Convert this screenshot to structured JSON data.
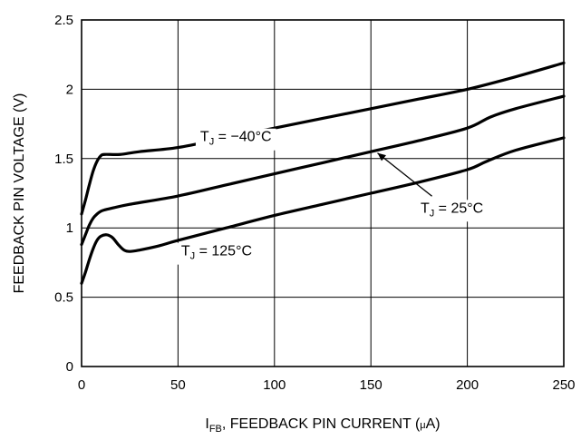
{
  "chart_data": {
    "type": "line",
    "xlabel": {
      "main": "I",
      "sub": "FB",
      "rest": ", FEEDBACK PIN CURRENT (",
      "mu": "μ",
      "unit": "A)"
    },
    "ylabel": "FEEDBACK PIN VOLTAGE (V)",
    "xlim": [
      0,
      250
    ],
    "ylim": [
      0,
      2.5
    ],
    "x_ticks": [
      {
        "value": 0,
        "label": "0"
      },
      {
        "value": 50,
        "label": "50"
      },
      {
        "value": 100,
        "label": "100"
      },
      {
        "value": 150,
        "label": "150"
      },
      {
        "value": 200,
        "label": "200"
      },
      {
        "value": 250,
        "label": "250"
      }
    ],
    "y_ticks": [
      {
        "value": 0,
        "label": "0"
      },
      {
        "value": 0.5,
        "label": "0.5"
      },
      {
        "value": 1,
        "label": "1"
      },
      {
        "value": 1.5,
        "label": "1.5"
      },
      {
        "value": 2,
        "label": "2"
      },
      {
        "value": 2.5,
        "label": "2.5"
      }
    ],
    "grid": true,
    "series": [
      {
        "name": "T_J = −40°C",
        "label": {
          "main": "T",
          "sub": "J",
          "rest": " = −40°C"
        },
        "x": [
          0,
          2,
          4,
          6,
          8,
          10,
          12,
          20,
          30,
          50,
          75,
          100,
          125,
          150,
          175,
          200,
          225,
          250
        ],
        "y": [
          1.1,
          1.2,
          1.31,
          1.41,
          1.48,
          1.52,
          1.53,
          1.53,
          1.55,
          1.58,
          1.65,
          1.72,
          1.79,
          1.86,
          1.93,
          2.0,
          2.09,
          2.19
        ]
      },
      {
        "name": "T_J = 25°C",
        "label": {
          "main": "T",
          "sub": "J",
          "rest": " = 25°C"
        },
        "x": [
          0,
          2,
          4,
          6,
          8,
          10,
          12,
          15,
          25,
          50,
          75,
          100,
          125,
          150,
          175,
          200,
          212,
          225,
          250
        ],
        "y": [
          0.88,
          0.95,
          1.02,
          1.07,
          1.1,
          1.12,
          1.13,
          1.14,
          1.17,
          1.23,
          1.31,
          1.39,
          1.47,
          1.55,
          1.63,
          1.72,
          1.8,
          1.86,
          1.95
        ]
      },
      {
        "name": "T_J = 125°C",
        "label": {
          "main": "T",
          "sub": "J",
          "rest": " = 125°C"
        },
        "x": [
          0,
          2,
          4,
          6,
          8,
          10,
          13,
          16,
          19,
          22,
          25,
          30,
          40,
          50,
          75,
          100,
          125,
          150,
          175,
          200,
          210,
          225,
          250
        ],
        "y": [
          0.6,
          0.68,
          0.77,
          0.85,
          0.91,
          0.94,
          0.95,
          0.93,
          0.88,
          0.84,
          0.83,
          0.84,
          0.87,
          0.91,
          1.0,
          1.09,
          1.17,
          1.25,
          1.33,
          1.42,
          1.48,
          1.56,
          1.65
        ]
      }
    ],
    "annotations": [
      {
        "series": 0,
        "placement": "inline",
        "at_x": 80
      },
      {
        "series": 1,
        "placement": "leader",
        "point_x": 152,
        "point_y": 1.56,
        "text_x": 192,
        "text_y": 1.15
      },
      {
        "series": 2,
        "placement": "free",
        "text_x": 70,
        "text_y": 0.84
      }
    ]
  }
}
